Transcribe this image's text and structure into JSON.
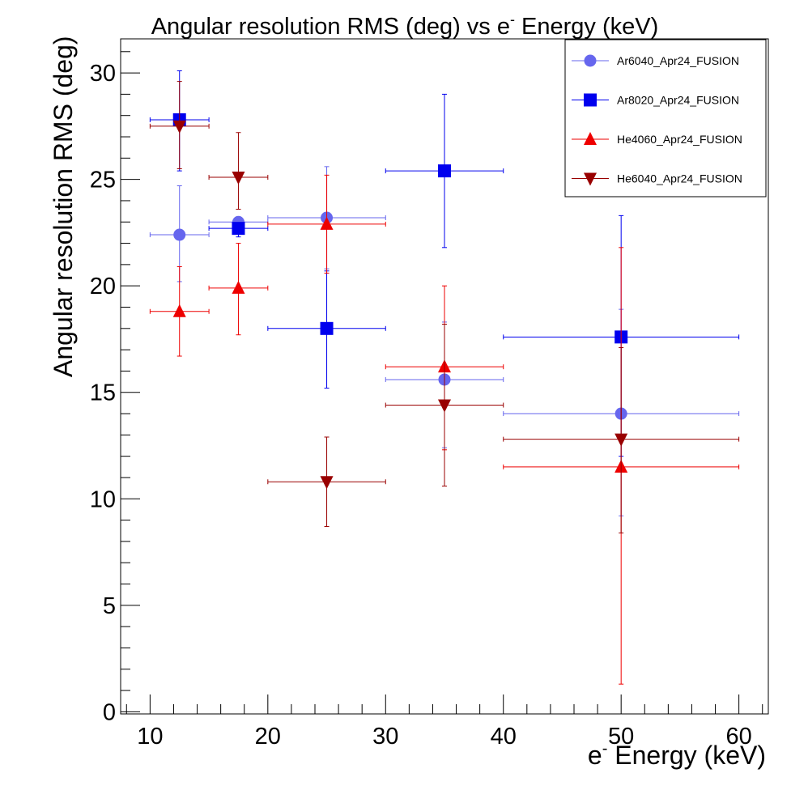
{
  "chart_data": {
    "type": "scatter",
    "title": "Angular resolution RMS (deg) vs e- Energy (keV)",
    "title_parts": {
      "before": "Angular resolution RMS (deg) vs e",
      "sup": "-",
      "after": " Energy (keV)"
    },
    "xlabel": "e- Energy (keV)",
    "xlabel_parts": {
      "before": "e",
      "sup": "-",
      "after": " Energy (keV)"
    },
    "ylabel": "Angular resolution RMS (deg)",
    "xlim": [
      7.5,
      62.5
    ],
    "ylim": [
      -0.1,
      31.6
    ],
    "xticks": [
      10,
      20,
      30,
      40,
      50,
      60
    ],
    "xtick_labels": [
      "10",
      "20",
      "30",
      "40",
      "50",
      "60"
    ],
    "yticks": [
      0,
      5,
      10,
      15,
      20,
      25,
      30
    ],
    "ytick_labels": [
      "0",
      "5",
      "10",
      "15",
      "20",
      "25",
      "30"
    ],
    "grid": false,
    "legend_position": "top-right",
    "series": [
      {
        "name": "Ar6040_Apr24_FUSION",
        "color": "#6666ee",
        "marker": "circle",
        "points": [
          {
            "x": 12.5,
            "xlo": 10,
            "xhi": 15,
            "y": 22.4,
            "ylo": 20.2,
            "yhi": 24.7
          },
          {
            "x": 17.5,
            "xlo": 15,
            "xhi": 20,
            "y": 23.0,
            "ylo": 22.8,
            "yhi": 23.2
          },
          {
            "x": 25,
            "xlo": 20,
            "xhi": 30,
            "y": 23.2,
            "ylo": 20.8,
            "yhi": 25.6
          },
          {
            "x": 35,
            "xlo": 30,
            "xhi": 40,
            "y": 15.6,
            "ylo": 12.4,
            "yhi": 18.3
          },
          {
            "x": 50,
            "xlo": 40,
            "xhi": 60,
            "y": 14.0,
            "ylo": 9.2,
            "yhi": 18.9
          }
        ]
      },
      {
        "name": "Ar8020_Apr24_FUSION",
        "color": "#0000ee",
        "marker": "square",
        "points": [
          {
            "x": 12.5,
            "xlo": 10,
            "xhi": 15,
            "y": 27.8,
            "ylo": 25.4,
            "yhi": 30.1
          },
          {
            "x": 17.5,
            "xlo": 15,
            "xhi": 20,
            "y": 22.7,
            "ylo": 22.3,
            "yhi": 22.9
          },
          {
            "x": 25,
            "xlo": 20,
            "xhi": 30,
            "y": 18.0,
            "ylo": 15.2,
            "yhi": 20.7
          },
          {
            "x": 35,
            "xlo": 30,
            "xhi": 40,
            "y": 25.4,
            "ylo": 21.8,
            "yhi": 29.0
          },
          {
            "x": 50,
            "xlo": 40,
            "xhi": 60,
            "y": 17.6,
            "ylo": 12.0,
            "yhi": 23.3
          }
        ]
      },
      {
        "name": "He4060_Apr24_FUSION",
        "color": "#ee0000",
        "marker": "triangle-up",
        "points": [
          {
            "x": 12.5,
            "xlo": 10,
            "xhi": 15,
            "y": 18.8,
            "ylo": 16.7,
            "yhi": 20.9
          },
          {
            "x": 17.5,
            "xlo": 15,
            "xhi": 20,
            "y": 19.9,
            "ylo": 17.7,
            "yhi": 22.0
          },
          {
            "x": 25,
            "xlo": 20,
            "xhi": 30,
            "y": 22.9,
            "ylo": 20.6,
            "yhi": 25.2
          },
          {
            "x": 35,
            "xlo": 30,
            "xhi": 40,
            "y": 16.2,
            "ylo": 12.3,
            "yhi": 20.0
          },
          {
            "x": 50,
            "xlo": 40,
            "xhi": 60,
            "y": 11.5,
            "ylo": 1.3,
            "yhi": 21.8
          }
        ]
      },
      {
        "name": "He6040_Apr24_FUSION",
        "color": "#990000",
        "marker": "triangle-down",
        "points": [
          {
            "x": 12.5,
            "xlo": 10,
            "xhi": 15,
            "y": 27.5,
            "ylo": 25.5,
            "yhi": 29.6
          },
          {
            "x": 17.5,
            "xlo": 15,
            "xhi": 20,
            "y": 25.1,
            "ylo": 23.6,
            "yhi": 27.2
          },
          {
            "x": 25,
            "xlo": 20,
            "xhi": 30,
            "y": 10.8,
            "ylo": 8.7,
            "yhi": 12.9
          },
          {
            "x": 35,
            "xlo": 30,
            "xhi": 40,
            "y": 14.4,
            "ylo": 10.6,
            "yhi": 18.2
          },
          {
            "x": 50,
            "xlo": 40,
            "xhi": 60,
            "y": 12.8,
            "ylo": 8.4,
            "yhi": 17.1
          }
        ]
      }
    ]
  }
}
